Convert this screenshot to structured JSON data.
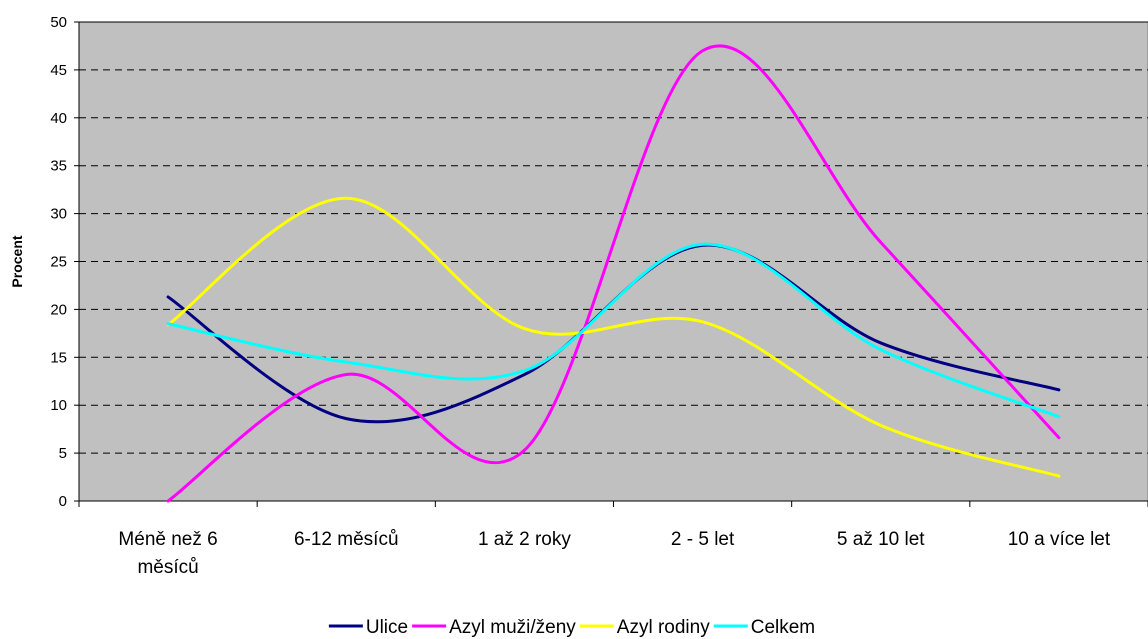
{
  "chart_data": {
    "type": "line",
    "title": "",
    "xlabel": "",
    "ylabel": "Procent",
    "ylim": [
      0,
      50
    ],
    "yticks": [
      0,
      5,
      10,
      15,
      20,
      25,
      30,
      35,
      40,
      45,
      50
    ],
    "grid": true,
    "smooth": true,
    "legend_position": "bottom",
    "plot_background": "#c0c0c0",
    "categories": [
      [
        "Méně než 6",
        "měsíců"
      ],
      [
        "6-12 měsíců"
      ],
      [
        "1 až 2 roky"
      ],
      [
        "2 - 5 let"
      ],
      [
        "5 až 10 let"
      ],
      [
        "10 a více let"
      ]
    ],
    "series": [
      {
        "name": "Ulice",
        "color": "#000080",
        "values": [
          21.3,
          8.6,
          13.2,
          26.7,
          16.5,
          11.6
        ]
      },
      {
        "name": "Azyl muži/ženy",
        "color": "#ff00ff",
        "values": [
          0,
          13.2,
          5.3,
          47.0,
          27.0,
          6.6
        ]
      },
      {
        "name": "Azyl rodiny",
        "color": "#ffff00",
        "values": [
          18.4,
          31.6,
          18.0,
          18.7,
          7.9,
          2.6
        ]
      },
      {
        "name": "Celkem",
        "color": "#00ffff",
        "values": [
          18.5,
          14.5,
          13.6,
          26.8,
          15.8,
          8.8
        ]
      }
    ]
  }
}
